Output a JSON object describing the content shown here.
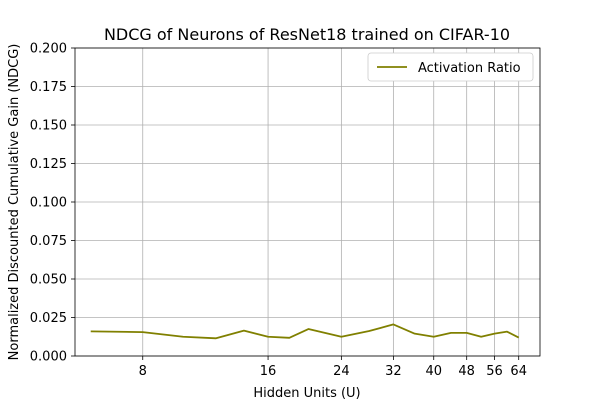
{
  "chart_data": {
    "type": "line",
    "title": "NDCG of Neurons of ResNet18 trained on CIFAR-10",
    "xlabel": "Hidden Units (U)",
    "ylabel": "Normalized Discounted Cumulative Gain (NDCG)",
    "xscale": "log2",
    "xlim": [
      5.5,
      72
    ],
    "ylim": [
      0,
      0.2
    ],
    "xticks": [
      8,
      16,
      24,
      32,
      40,
      48,
      56,
      64
    ],
    "yticks": [
      0.0,
      0.025,
      0.05,
      0.075,
      0.1,
      0.125,
      0.15,
      0.175,
      0.2
    ],
    "ytick_labels": [
      "0.000",
      "0.025",
      "0.050",
      "0.075",
      "0.100",
      "0.125",
      "0.150",
      "0.175",
      "0.200"
    ],
    "grid": true,
    "legend_position": "top-right",
    "series": [
      {
        "name": "Activation Ratio",
        "color": "#808000",
        "x": [
          6,
          8,
          10,
          12,
          14,
          16,
          18,
          20,
          24,
          28,
          32,
          36,
          40,
          44,
          48,
          52,
          56,
          60,
          64
        ],
        "y": [
          0.016,
          0.0155,
          0.0125,
          0.0115,
          0.0165,
          0.0125,
          0.0118,
          0.0175,
          0.0125,
          0.0162,
          0.0205,
          0.0145,
          0.0125,
          0.015,
          0.015,
          0.0125,
          0.0145,
          0.0158,
          0.012
        ]
      }
    ]
  }
}
